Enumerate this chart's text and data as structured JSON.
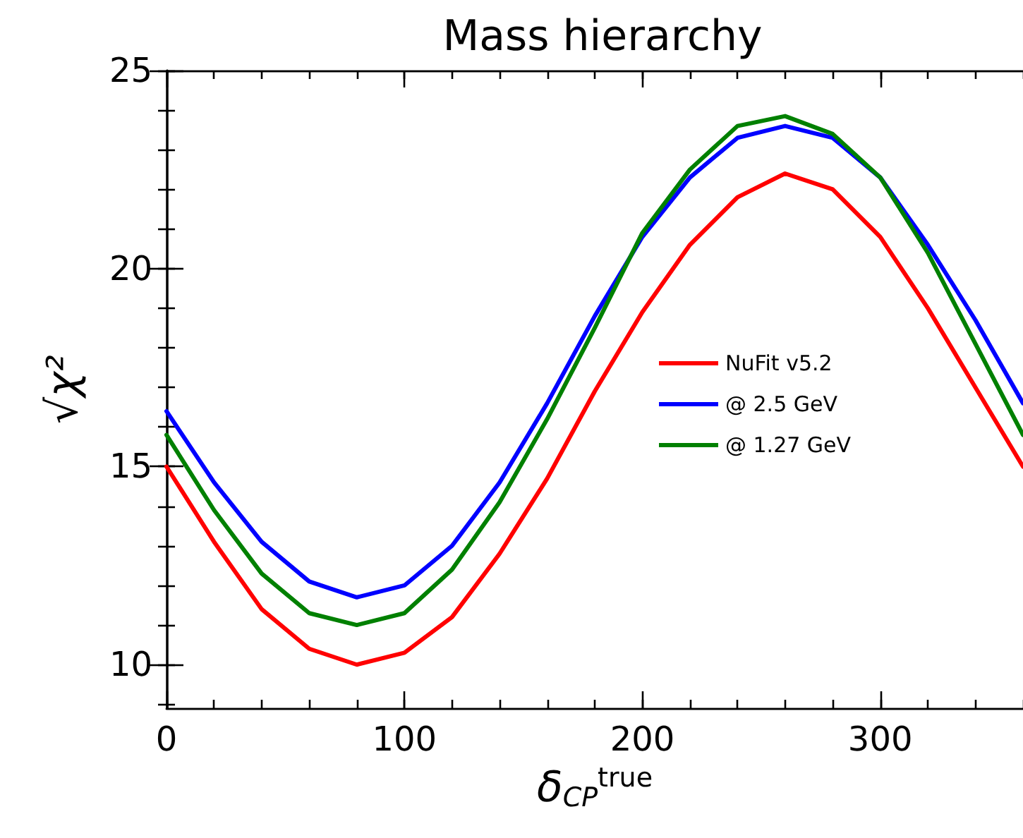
{
  "chart_data": {
    "type": "line",
    "title": "Mass hierarchy",
    "xlabel": "δ$_{CP}$$^{true}$",
    "ylabel": "√χ²",
    "x": [
      0,
      20,
      40,
      60,
      80,
      100,
      120,
      140,
      160,
      180,
      200,
      220,
      240,
      260,
      280,
      300,
      320,
      340,
      360
    ],
    "series": [
      {
        "name": "NuFit v5.2",
        "color": "#ff0000",
        "values": [
          15.0,
          13.1,
          11.4,
          10.4,
          10.0,
          10.3,
          11.2,
          12.8,
          14.7,
          16.9,
          18.9,
          20.6,
          21.8,
          22.4,
          22.0,
          20.8,
          19.0,
          17.0,
          15.0
        ]
      },
      {
        "name": "@ 2.5 GeV",
        "color": "#0000ff",
        "values": [
          16.4,
          14.6,
          13.1,
          12.1,
          11.7,
          12.0,
          13.0,
          14.6,
          16.6,
          18.8,
          20.8,
          22.3,
          23.3,
          23.6,
          23.3,
          22.3,
          20.6,
          18.7,
          16.6
        ]
      },
      {
        "name": "@ 1.27 GeV",
        "color": "#008000",
        "values": [
          15.8,
          13.9,
          12.3,
          11.3,
          11.0,
          11.3,
          12.4,
          14.1,
          16.2,
          18.5,
          20.9,
          22.5,
          23.6,
          23.85,
          23.4,
          22.3,
          20.4,
          18.1,
          15.8
        ]
      }
    ],
    "xlim": [
      0,
      360
    ],
    "xticks": [
      0,
      100,
      200,
      300
    ],
    "ylim": [
      8.9,
      25
    ],
    "yticks": [
      10,
      15,
      20,
      25
    ],
    "grid": false,
    "legend": "right",
    "marker": "none",
    "line_style": "solid"
  }
}
